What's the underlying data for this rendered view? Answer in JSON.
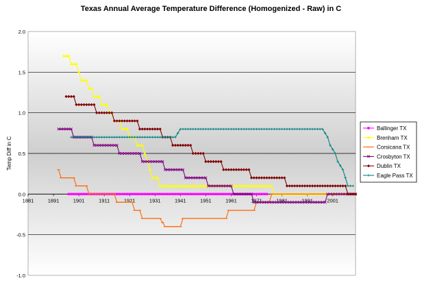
{
  "chart_data": {
    "type": "line",
    "title": "Texas Annual Average Temperature Difference (Homogenized - Raw) in C",
    "xlabel": "",
    "ylabel": "Temp Diff in C",
    "xlim": [
      1881,
      2010
    ],
    "ylim": [
      -1.0,
      2.0
    ],
    "x_ticks": [
      "1881",
      "1891",
      "1901",
      "1911",
      "1921",
      "1931",
      "1941",
      "1951",
      "1961",
      "1971",
      "1981",
      "1991",
      "2001"
    ],
    "y_ticks": [
      "2.0",
      "1.5",
      "1.0",
      "0.5",
      "0.0",
      "-0.5",
      "-1.0"
    ],
    "grid": "horizontal",
    "legend_position": "right",
    "plot_background": "gradient-grey",
    "series": [
      {
        "name": "Ballinger TX",
        "color": "#ff00ff",
        "marker": "square",
        "points": [
          [
            1897,
            0.0
          ],
          [
            1975,
            0.0
          ]
        ]
      },
      {
        "name": "Brenham TX",
        "color": "#ffff00",
        "marker": "triangle",
        "points": [
          [
            1895,
            1.7
          ],
          [
            1897,
            1.7
          ],
          [
            1898,
            1.6
          ],
          [
            1900,
            1.6
          ],
          [
            1901,
            1.5
          ],
          [
            1902,
            1.4
          ],
          [
            1904,
            1.4
          ],
          [
            1905,
            1.3
          ],
          [
            1906,
            1.3
          ],
          [
            1907,
            1.2
          ],
          [
            1909,
            1.2
          ],
          [
            1910,
            1.1
          ],
          [
            1912,
            1.1
          ],
          [
            1913,
            1.0
          ],
          [
            1914,
            1.0
          ],
          [
            1915,
            0.9
          ],
          [
            1917,
            0.9
          ],
          [
            1918,
            0.8
          ],
          [
            1920,
            0.8
          ],
          [
            1921,
            0.7
          ],
          [
            1923,
            0.7
          ],
          [
            1924,
            0.6
          ],
          [
            1926,
            0.6
          ],
          [
            1927,
            0.5
          ],
          [
            1928,
            0.4
          ],
          [
            1929,
            0.3
          ],
          [
            1930,
            0.2
          ],
          [
            1932,
            0.2
          ],
          [
            1933,
            0.1
          ],
          [
            1977,
            0.1
          ],
          [
            1978,
            0.0
          ],
          [
            2010,
            0.0
          ]
        ]
      },
      {
        "name": "Corsicana TX",
        "color": "#ff6600",
        "marker": "dash",
        "points": [
          [
            1893,
            0.3
          ],
          [
            1894,
            0.2
          ],
          [
            1899,
            0.2
          ],
          [
            1900,
            0.1
          ],
          [
            1904,
            0.1
          ],
          [
            1905,
            0.0
          ],
          [
            1915,
            0.0
          ],
          [
            1916,
            -0.1
          ],
          [
            1922,
            -0.1
          ],
          [
            1923,
            -0.2
          ],
          [
            1925,
            -0.2
          ],
          [
            1926,
            -0.3
          ],
          [
            1933,
            -0.3
          ],
          [
            1935,
            -0.4
          ],
          [
            1941,
            -0.4
          ],
          [
            1942,
            -0.3
          ],
          [
            1959,
            -0.3
          ],
          [
            1960,
            -0.2
          ],
          [
            1970,
            -0.2
          ],
          [
            1971,
            -0.1
          ],
          [
            1976,
            -0.1
          ],
          [
            1977,
            0.0
          ],
          [
            2010,
            0.0
          ]
        ]
      },
      {
        "name": "Crosbyton TX",
        "color": "#800080",
        "marker": "x",
        "points": [
          [
            1893,
            0.8
          ],
          [
            1898,
            0.8
          ],
          [
            1899,
            0.7
          ],
          [
            1906,
            0.7
          ],
          [
            1907,
            0.6
          ],
          [
            1916,
            0.6
          ],
          [
            1917,
            0.5
          ],
          [
            1925,
            0.5
          ],
          [
            1926,
            0.4
          ],
          [
            1934,
            0.4
          ],
          [
            1935,
            0.3
          ],
          [
            1942,
            0.3
          ],
          [
            1943,
            0.2
          ],
          [
            1951,
            0.2
          ],
          [
            1952,
            0.1
          ],
          [
            1961,
            0.1
          ],
          [
            1962,
            0.0
          ],
          [
            1969,
            0.0
          ],
          [
            1970,
            -0.1
          ],
          [
            1998,
            -0.1
          ],
          [
            1999,
            0.0
          ],
          [
            2010,
            0.0
          ]
        ]
      },
      {
        "name": "Dublin TX",
        "color": "#800000",
        "marker": "diamond",
        "points": [
          [
            1896,
            1.2
          ],
          [
            1899,
            1.2
          ],
          [
            1900,
            1.1
          ],
          [
            1907,
            1.1
          ],
          [
            1908,
            1.0
          ],
          [
            1914,
            1.0
          ],
          [
            1915,
            0.9
          ],
          [
            1924,
            0.9
          ],
          [
            1925,
            0.8
          ],
          [
            1933,
            0.8
          ],
          [
            1934,
            0.7
          ],
          [
            1937,
            0.7
          ],
          [
            1938,
            0.6
          ],
          [
            1945,
            0.6
          ],
          [
            1946,
            0.5
          ],
          [
            1950,
            0.5
          ],
          [
            1951,
            0.4
          ],
          [
            1957,
            0.4
          ],
          [
            1958,
            0.3
          ],
          [
            1968,
            0.3
          ],
          [
            1969,
            0.2
          ],
          [
            1982,
            0.2
          ],
          [
            1983,
            0.1
          ],
          [
            2006,
            0.1
          ],
          [
            2007,
            0.0
          ],
          [
            2010,
            0.0
          ]
        ]
      },
      {
        "name": "Eagle Pass TX",
        "color": "#008080",
        "marker": "plus",
        "points": [
          [
            1898,
            0.7
          ],
          [
            1939,
            0.7
          ],
          [
            1941,
            0.8
          ],
          [
            1997,
            0.8
          ],
          [
            1999,
            0.7
          ],
          [
            2000,
            0.6
          ],
          [
            2002,
            0.5
          ],
          [
            2003,
            0.4
          ],
          [
            2005,
            0.3
          ],
          [
            2006,
            0.2
          ],
          [
            2007,
            0.1
          ],
          [
            2009,
            0.1
          ]
        ]
      }
    ]
  }
}
